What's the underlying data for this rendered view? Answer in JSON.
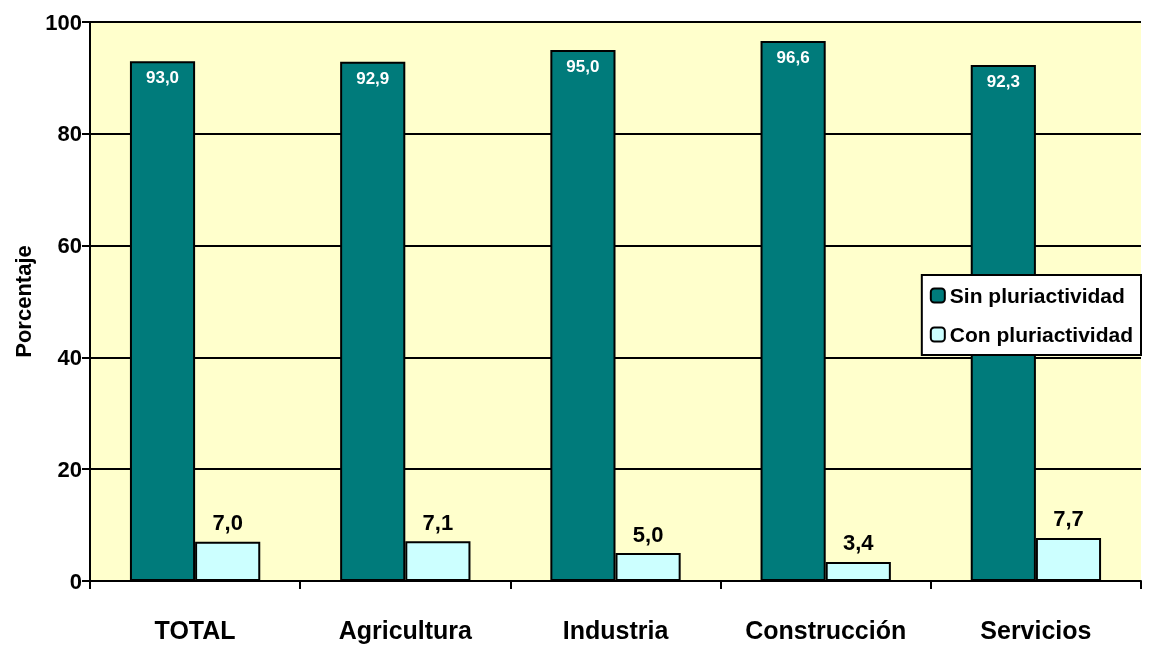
{
  "chart_data": {
    "type": "bar",
    "ylabel": "Porcentaje",
    "categories": [
      "TOTAL",
      "Agricultura",
      "Industria",
      "Construcción",
      "Servicios"
    ],
    "series": [
      {
        "name": "Sin pluriactividad",
        "color": "#007b7b",
        "values": [
          93.0,
          92.9,
          95.0,
          96.6,
          92.3
        ],
        "value_labels": [
          "93,0",
          "92,9",
          "95,0",
          "96,6",
          "92,3"
        ]
      },
      {
        "name": "Con pluriactividad",
        "color": "#ccffff",
        "values": [
          7.0,
          7.1,
          5.0,
          3.4,
          7.7
        ],
        "value_labels": [
          "7,0",
          "7,1",
          "5,0",
          "3,4",
          "7,7"
        ]
      }
    ],
    "ylim": [
      0,
      100
    ],
    "yticks": [
      0,
      20,
      40,
      60,
      80,
      100
    ],
    "grid": "y",
    "legend": "right"
  }
}
